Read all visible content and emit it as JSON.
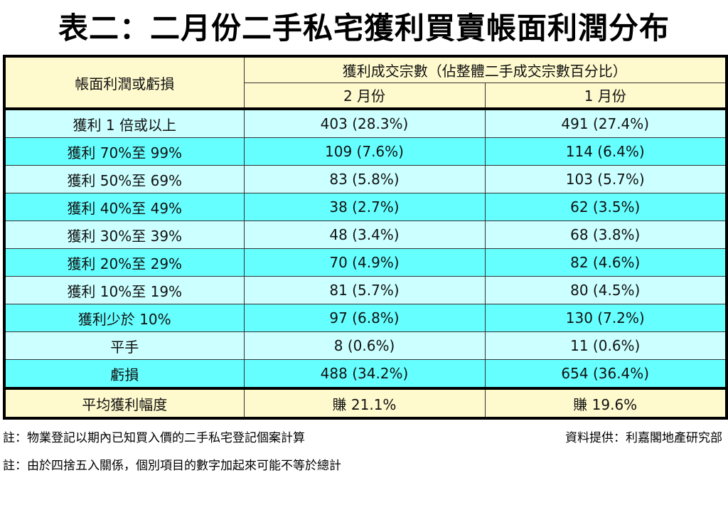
{
  "title": "表二：二月份二手私宅獲利買賣帳面利潤分布",
  "header": {
    "col1": "帳面利潤或虧損",
    "group": "獲利成交宗數（佔整體二手成交宗數百分比）",
    "feb": "2 月份",
    "jan": "1 月份"
  },
  "rows": [
    {
      "label": "獲利 1 倍或以上",
      "feb": "403 (28.3%)",
      "jan": "491 (27.4%)"
    },
    {
      "label": "獲利 70%至 99%",
      "feb": "109 (7.6%)",
      "jan": "114 (6.4%)"
    },
    {
      "label": "獲利 50%至 69%",
      "feb": "83 (5.8%)",
      "jan": "103 (5.7%)"
    },
    {
      "label": "獲利 40%至 49%",
      "feb": "38 (2.7%)",
      "jan": "62 (3.5%)"
    },
    {
      "label": "獲利 30%至 39%",
      "feb": "48 (3.4%)",
      "jan": "68 (3.8%)"
    },
    {
      "label": "獲利 20%至 29%",
      "feb": "70 (4.9%)",
      "jan": "82 (4.6%)"
    },
    {
      "label": "獲利 10%至 19%",
      "feb": "81 (5.7%)",
      "jan": "80 (4.5%)"
    },
    {
      "label": "獲利少於 10%",
      "feb": "97 (6.8%)",
      "jan": "130 (7.2%)"
    },
    {
      "label": "平手",
      "feb": "8 (0.6%)",
      "jan": "11 (0.6%)"
    },
    {
      "label": "虧損",
      "feb": "488 (34.2%)",
      "jan": "654 (36.4%)"
    }
  ],
  "average": {
    "label": "平均獲利幅度",
    "feb": "賺 21.1%",
    "jan": "賺 19.6%"
  },
  "notes": {
    "note1": "註：物業登記以期內已知買入價的二手私宅登記個案計算",
    "source": "資料提供：利嘉閣地產研究部",
    "note2": "註：由於四捨五入關係，個別項目的數字加起來可能不等於總計"
  }
}
